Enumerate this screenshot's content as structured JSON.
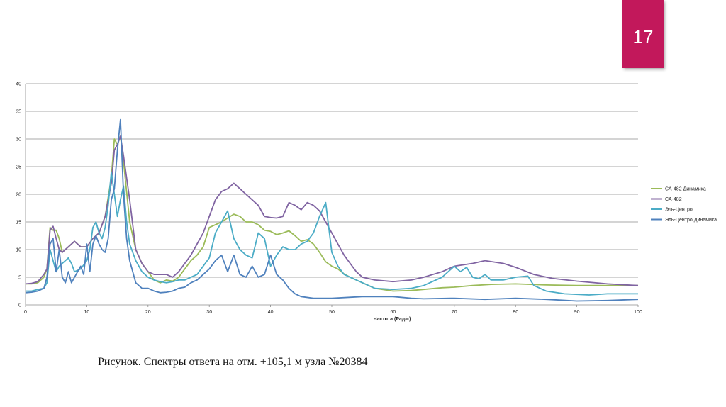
{
  "slide_number": "17",
  "caption": "Рисунок. Спектры ответа на отм. +105,1 м узла №20384",
  "chart_data": {
    "type": "line",
    "xlabel": "Частота (Рад/с)",
    "ylabel": "",
    "xlim": [
      0,
      100
    ],
    "ylim": [
      0,
      40
    ],
    "x_ticks": [
      0,
      10,
      20,
      30,
      40,
      50,
      60,
      70,
      80,
      90,
      100
    ],
    "y_ticks": [
      0,
      5,
      10,
      15,
      20,
      25,
      30,
      35,
      40
    ],
    "grid": true,
    "legend_position": "right",
    "series": [
      {
        "name": "СА-482 Динамика",
        "color": "#9bbb59",
        "points": [
          [
            0,
            3.8
          ],
          [
            1,
            3.8
          ],
          [
            2,
            4
          ],
          [
            3,
            5
          ],
          [
            3.5,
            6.5
          ],
          [
            4,
            14
          ],
          [
            4.5,
            13.5
          ],
          [
            5,
            13.5
          ],
          [
            5.5,
            12
          ],
          [
            6,
            9.5
          ],
          [
            7,
            10.5
          ],
          [
            8,
            11.5
          ],
          [
            9,
            10.5
          ],
          [
            10,
            10.5
          ],
          [
            11,
            12
          ],
          [
            12,
            13
          ],
          [
            13,
            16
          ],
          [
            14,
            23
          ],
          [
            14.5,
            30
          ],
          [
            15,
            29
          ],
          [
            15.5,
            30.5
          ],
          [
            16,
            26
          ],
          [
            17,
            15
          ],
          [
            18,
            10
          ],
          [
            19,
            7.5
          ],
          [
            20,
            6
          ],
          [
            21,
            4.5
          ],
          [
            22,
            4
          ],
          [
            23,
            4.5
          ],
          [
            24,
            4.3
          ],
          [
            25,
            5
          ],
          [
            26,
            6.5
          ],
          [
            27,
            8
          ],
          [
            28,
            9
          ],
          [
            29,
            10.5
          ],
          [
            30,
            14
          ],
          [
            31,
            14.5
          ],
          [
            32,
            15
          ],
          [
            33,
            15.7
          ],
          [
            34,
            16.4
          ],
          [
            35,
            16
          ],
          [
            36,
            15
          ],
          [
            37,
            15
          ],
          [
            38,
            14.5
          ],
          [
            39,
            13.5
          ],
          [
            40,
            13.3
          ],
          [
            41,
            12.7
          ],
          [
            42,
            13
          ],
          [
            43,
            13.4
          ],
          [
            44,
            12.5
          ],
          [
            45,
            11.5
          ],
          [
            46,
            11.8
          ],
          [
            47,
            11
          ],
          [
            48,
            9.5
          ],
          [
            49,
            7.8
          ],
          [
            50,
            7
          ],
          [
            51,
            6.5
          ],
          [
            52,
            5.6
          ],
          [
            53,
            5
          ],
          [
            54,
            4.5
          ],
          [
            55,
            4
          ],
          [
            57,
            3
          ],
          [
            60,
            2.5
          ],
          [
            63,
            2.6
          ],
          [
            65,
            2.8
          ],
          [
            68,
            3.1
          ],
          [
            70,
            3.2
          ],
          [
            73,
            3.5
          ],
          [
            76,
            3.7
          ],
          [
            80,
            3.8
          ],
          [
            85,
            3.6
          ],
          [
            90,
            3.5
          ],
          [
            95,
            3.5
          ],
          [
            100,
            3.5
          ]
        ]
      },
      {
        "name": "СА-482",
        "color": "#8064a2",
        "points": [
          [
            0,
            3.8
          ],
          [
            1,
            3.9
          ],
          [
            2,
            4.2
          ],
          [
            3,
            5.5
          ],
          [
            3.5,
            6.5
          ],
          [
            4,
            13.5
          ],
          [
            4.5,
            14.2
          ],
          [
            5,
            12
          ],
          [
            5.5,
            10
          ],
          [
            6,
            9.5
          ],
          [
            7,
            10.5
          ],
          [
            8,
            11.5
          ],
          [
            9,
            10.5
          ],
          [
            10,
            10.5
          ],
          [
            11,
            12
          ],
          [
            12,
            13
          ],
          [
            13,
            16
          ],
          [
            14,
            22
          ],
          [
            14.5,
            28
          ],
          [
            15,
            29
          ],
          [
            15.5,
            30.5
          ],
          [
            16,
            27
          ],
          [
            17,
            19
          ],
          [
            18,
            10
          ],
          [
            19,
            7.5
          ],
          [
            20,
            6
          ],
          [
            21,
            5.5
          ],
          [
            22,
            5.5
          ],
          [
            23,
            5.5
          ],
          [
            24,
            5
          ],
          [
            25,
            6
          ],
          [
            26,
            7.5
          ],
          [
            27,
            9
          ],
          [
            28,
            11
          ],
          [
            29,
            13
          ],
          [
            30,
            16
          ],
          [
            31,
            19
          ],
          [
            32,
            20.5
          ],
          [
            33,
            21
          ],
          [
            34,
            22
          ],
          [
            35,
            21
          ],
          [
            36,
            20
          ],
          [
            37,
            19
          ],
          [
            38,
            18
          ],
          [
            39,
            16
          ],
          [
            40,
            15.8
          ],
          [
            41,
            15.7
          ],
          [
            42,
            16
          ],
          [
            43,
            18.5
          ],
          [
            44,
            18
          ],
          [
            45,
            17.2
          ],
          [
            46,
            18.5
          ],
          [
            47,
            18
          ],
          [
            48,
            17
          ],
          [
            49,
            15
          ],
          [
            50,
            13
          ],
          [
            51,
            11
          ],
          [
            52,
            9
          ],
          [
            53,
            7.5
          ],
          [
            54,
            6
          ],
          [
            55,
            5
          ],
          [
            57,
            4.5
          ],
          [
            60,
            4.2
          ],
          [
            63,
            4.5
          ],
          [
            65,
            5
          ],
          [
            68,
            6
          ],
          [
            70,
            7
          ],
          [
            73,
            7.5
          ],
          [
            75,
            8
          ],
          [
            78,
            7.5
          ],
          [
            80,
            6.8
          ],
          [
            83,
            5.5
          ],
          [
            86,
            4.8
          ],
          [
            90,
            4.3
          ],
          [
            95,
            3.8
          ],
          [
            100,
            3.5
          ]
        ]
      },
      {
        "name": "Эль-Центро",
        "color": "#4bacc6",
        "points": [
          [
            0,
            2.5
          ],
          [
            1,
            2.5
          ],
          [
            2,
            2.8
          ],
          [
            3,
            3
          ],
          [
            3.5,
            4
          ],
          [
            4,
            10
          ],
          [
            4.5,
            8
          ],
          [
            5,
            6
          ],
          [
            5.5,
            7
          ],
          [
            6,
            7.5
          ],
          [
            6.5,
            8
          ],
          [
            7,
            8.5
          ],
          [
            7.5,
            7.5
          ],
          [
            8,
            6
          ],
          [
            9,
            6.5
          ],
          [
            10,
            8
          ],
          [
            10.5,
            10
          ],
          [
            11,
            14
          ],
          [
            11.5,
            15
          ],
          [
            12,
            13
          ],
          [
            12.5,
            12
          ],
          [
            13,
            14
          ],
          [
            13.5,
            18
          ],
          [
            14,
            24
          ],
          [
            14.5,
            20
          ],
          [
            15,
            16
          ],
          [
            15.5,
            19
          ],
          [
            16,
            21.5
          ],
          [
            16.5,
            15
          ],
          [
            17,
            11
          ],
          [
            18,
            8
          ],
          [
            19,
            6
          ],
          [
            20,
            5
          ],
          [
            21,
            4.5
          ],
          [
            22,
            4.2
          ],
          [
            23,
            4
          ],
          [
            24,
            4.2
          ],
          [
            25,
            4.5
          ],
          [
            26,
            4.5
          ],
          [
            27,
            5
          ],
          [
            28,
            5.5
          ],
          [
            29,
            7
          ],
          [
            30,
            8.5
          ],
          [
            31,
            13
          ],
          [
            32,
            15
          ],
          [
            33,
            17
          ],
          [
            34,
            12
          ],
          [
            35,
            10
          ],
          [
            36,
            9
          ],
          [
            37,
            8.5
          ],
          [
            38,
            13
          ],
          [
            39,
            12
          ],
          [
            40,
            7
          ],
          [
            41,
            9
          ],
          [
            42,
            10.5
          ],
          [
            43,
            10
          ],
          [
            44,
            10
          ],
          [
            45,
            11
          ],
          [
            46,
            11.5
          ],
          [
            47,
            13
          ],
          [
            48,
            16
          ],
          [
            49,
            18.5
          ],
          [
            50,
            9.5
          ],
          [
            51,
            7
          ],
          [
            52,
            5.5
          ],
          [
            53,
            5
          ],
          [
            54,
            4.5
          ],
          [
            55,
            4
          ],
          [
            57,
            3
          ],
          [
            60,
            2.8
          ],
          [
            63,
            3
          ],
          [
            65,
            3.5
          ],
          [
            68,
            5
          ],
          [
            70,
            7
          ],
          [
            71,
            6
          ],
          [
            72,
            6.8
          ],
          [
            73,
            5
          ],
          [
            74,
            4.7
          ],
          [
            75,
            5.5
          ],
          [
            76,
            4.5
          ],
          [
            78,
            4.5
          ],
          [
            80,
            5
          ],
          [
            82,
            5.2
          ],
          [
            83,
            3.5
          ],
          [
            85,
            2.5
          ],
          [
            88,
            2
          ],
          [
            92,
            1.8
          ],
          [
            95,
            2
          ],
          [
            100,
            2
          ]
        ]
      },
      {
        "name": "Эль-Центро Динамика",
        "color": "#4f81bd",
        "points": [
          [
            0,
            2.2
          ],
          [
            1,
            2.3
          ],
          [
            2,
            2.5
          ],
          [
            3,
            3
          ],
          [
            3.5,
            5
          ],
          [
            4,
            11
          ],
          [
            4.5,
            12
          ],
          [
            5,
            6
          ],
          [
            5.5,
            10
          ],
          [
            6,
            5
          ],
          [
            6.5,
            4
          ],
          [
            7,
            6
          ],
          [
            7.5,
            4
          ],
          [
            8,
            5
          ],
          [
            9,
            7
          ],
          [
            9.5,
            5.5
          ],
          [
            10,
            11
          ],
          [
            10.5,
            6
          ],
          [
            11,
            11
          ],
          [
            11.5,
            12.5
          ],
          [
            12,
            11
          ],
          [
            12.5,
            10
          ],
          [
            13,
            9.5
          ],
          [
            13.5,
            12
          ],
          [
            14,
            19
          ],
          [
            14.5,
            21
          ],
          [
            15,
            28
          ],
          [
            15.5,
            33.5
          ],
          [
            16,
            20
          ],
          [
            16.5,
            12
          ],
          [
            17,
            8
          ],
          [
            18,
            4
          ],
          [
            19,
            3
          ],
          [
            20,
            3
          ],
          [
            21,
            2.5
          ],
          [
            22,
            2.2
          ],
          [
            23,
            2.3
          ],
          [
            24,
            2.5
          ],
          [
            25,
            3
          ],
          [
            26,
            3.2
          ],
          [
            27,
            4
          ],
          [
            28,
            4.5
          ],
          [
            29,
            5.5
          ],
          [
            30,
            6.5
          ],
          [
            31,
            8
          ],
          [
            32,
            9
          ],
          [
            33,
            6
          ],
          [
            34,
            9
          ],
          [
            35,
            5.5
          ],
          [
            36,
            5
          ],
          [
            37,
            7
          ],
          [
            38,
            5
          ],
          [
            39,
            5.5
          ],
          [
            40,
            9
          ],
          [
            41,
            5.5
          ],
          [
            42,
            4.5
          ],
          [
            43,
            3
          ],
          [
            44,
            2
          ],
          [
            45,
            1.5
          ],
          [
            47,
            1.2
          ],
          [
            50,
            1.2
          ],
          [
            55,
            1.5
          ],
          [
            60,
            1.5
          ],
          [
            63,
            1.2
          ],
          [
            65,
            1.1
          ],
          [
            70,
            1.2
          ],
          [
            75,
            1
          ],
          [
            80,
            1.2
          ],
          [
            85,
            1
          ],
          [
            90,
            0.7
          ],
          [
            95,
            0.8
          ],
          [
            100,
            1
          ]
        ]
      }
    ]
  }
}
